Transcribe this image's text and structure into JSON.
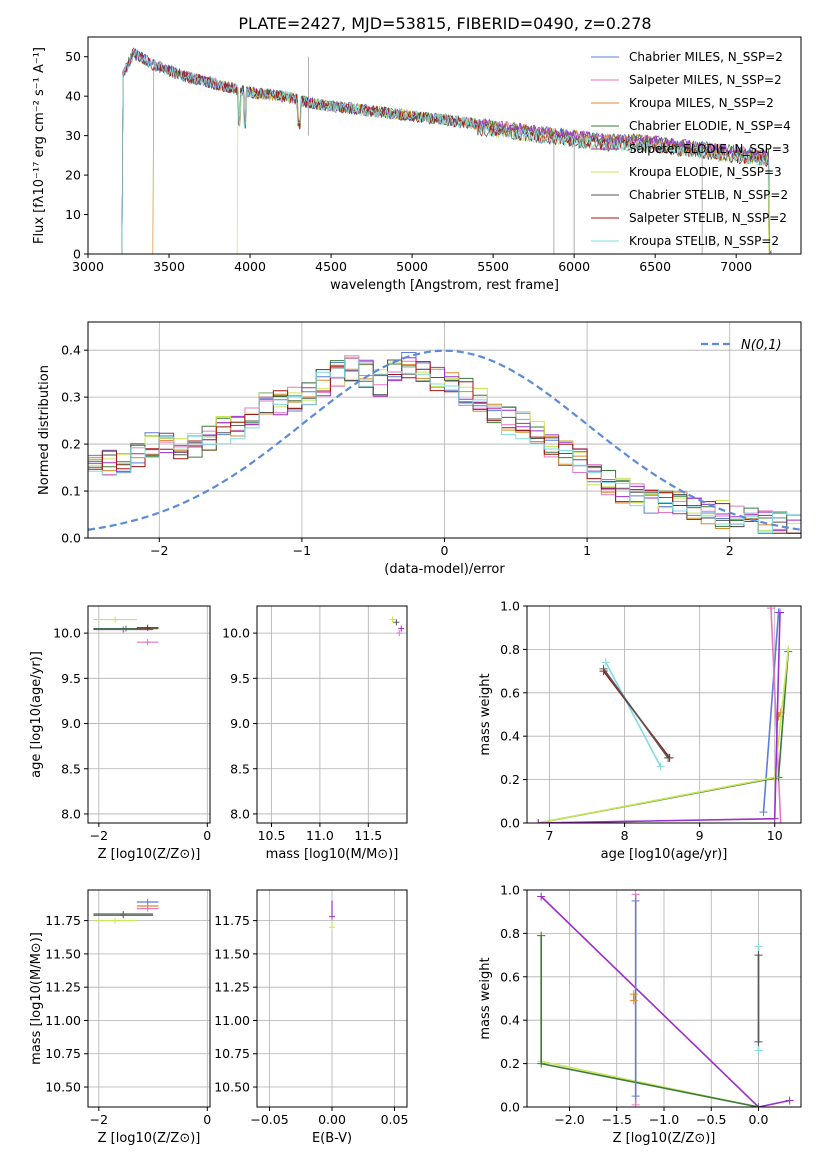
{
  "title": "PLATE=2427, MJD=53815, FIBERID=0490, z=0.278",
  "colors": {
    "chabrier_miles": "#5b7fd6",
    "salpeter_miles": "#e377c2",
    "kroupa_miles": "#d98a2b",
    "chabrier_elodie": "#3d7a3d",
    "salpeter_elodie": "#9b30c9",
    "kroupa_elodie": "#c8e65a",
    "chabrier_stelib": "#555555",
    "salpeter_stelib": "#a01515",
    "kroupa_stelib": "#7fdbe0",
    "normal": "#5b8bd9",
    "grid": "#b0b0b0"
  },
  "chart_data": [
    {
      "id": "spectrum",
      "type": "line",
      "xlabel": "wavelength [Angstrom, rest frame]",
      "ylabel": "Flux [fλ10⁻¹⁷ erg cm⁻² s⁻¹ A⁻¹]",
      "xlim": [
        3000,
        7400
      ],
      "ylim": [
        0,
        55
      ],
      "xticks": [
        3000,
        3500,
        4000,
        4500,
        5000,
        5500,
        6000,
        6500,
        7000
      ],
      "yticks": [
        0,
        10,
        20,
        30,
        40,
        50
      ],
      "grid": false,
      "legend_position": "top-right",
      "continuum": {
        "x": [
          3200,
          3280,
          3400,
          3600,
          3800,
          4000,
          4200,
          4400,
          4600,
          4800,
          5000,
          5200,
          5400,
          5600,
          5800,
          6000,
          6200,
          6400,
          6600,
          6800,
          7000,
          7200
        ],
        "y": [
          44,
          51,
          48,
          45,
          43,
          41,
          40,
          38,
          37,
          36,
          35,
          34,
          33,
          32,
          31,
          30,
          29,
          29,
          28,
          27,
          26,
          25
        ]
      },
      "series": [
        {
          "name": "Chabrier MILES, N_SSP=2",
          "color_key": "chabrier_miles"
        },
        {
          "name": "Salpeter MILES, N_SSP=2",
          "color_key": "salpeter_miles"
        },
        {
          "name": "Kroupa MILES, N_SSP=2",
          "color_key": "kroupa_miles"
        },
        {
          "name": "Chabrier ELODIE, N_SSP=4",
          "color_key": "chabrier_elodie"
        },
        {
          "name": "Salpeter ELODIE, N_SSP=3",
          "color_key": "salpeter_elodie"
        },
        {
          "name": "Kroupa ELODIE, N_SSP=3",
          "color_key": "kroupa_elodie"
        },
        {
          "name": "Chabrier STELIB, N_SSP=2",
          "color_key": "chabrier_stelib"
        },
        {
          "name": "Salpeter STELIB, N_SSP=2",
          "color_key": "salpeter_stelib"
        },
        {
          "name": "Kroupa STELIB, N_SSP=2",
          "color_key": "kroupa_stelib"
        }
      ]
    },
    {
      "id": "residuals",
      "type": "line",
      "xlabel": "(data-model)/error",
      "ylabel": "Normed distribution",
      "xlim": [
        -2.5,
        2.5
      ],
      "ylim": [
        0,
        0.46
      ],
      "xticks": [
        -2,
        -1,
        0,
        1,
        2
      ],
      "yticks": [
        0.0,
        0.1,
        0.2,
        0.3,
        0.4
      ],
      "grid": true,
      "legend_position": "top-right",
      "normal_curve": {
        "name": "N(0,1)",
        "mu": 0,
        "sigma": 1
      },
      "histogram_bins": {
        "start": -2.5,
        "width": 0.1
      },
      "histogram_shape": [
        0.15,
        0.16,
        0.16,
        0.18,
        0.2,
        0.21,
        0.19,
        0.2,
        0.21,
        0.23,
        0.24,
        0.26,
        0.28,
        0.29,
        0.3,
        0.31,
        0.33,
        0.35,
        0.36,
        0.35,
        0.33,
        0.36,
        0.37,
        0.35,
        0.34,
        0.33,
        0.31,
        0.29,
        0.26,
        0.25,
        0.24,
        0.22,
        0.2,
        0.18,
        0.16,
        0.14,
        0.12,
        0.1,
        0.09,
        0.08,
        0.07,
        0.07,
        0.06,
        0.05,
        0.05,
        0.04,
        0.04,
        0.03,
        0.03,
        0.03
      ]
    },
    {
      "id": "age_vs_Z",
      "type": "scatter",
      "xlabel": "Z [log10(Z/Z⊙)]",
      "ylabel": "age [log10(age/yr)]",
      "xlim": [
        -2.2,
        0.05
      ],
      "ylim": [
        7.9,
        10.3
      ],
      "xticks": [
        -2,
        0
      ],
      "yticks": [
        8.0,
        8.5,
        9.0,
        9.5,
        10.0
      ],
      "points": [
        {
          "color_key": "kroupa_elodie",
          "x": -2.1,
          "x2": -1.3,
          "y": 10.15
        },
        {
          "color_key": "chabrier_elodie",
          "x": -2.1,
          "x2": -0.9,
          "y": 10.05
        },
        {
          "color_key": "salpeter_miles",
          "x": -1.3,
          "x2": -0.9,
          "y": 9.9
        },
        {
          "color_key": "salpeter_elodie",
          "x": -2.1,
          "x2": -1.0,
          "y": 10.04
        },
        {
          "color_key": "salpeter_stelib",
          "x": -1.3,
          "x2": -0.9,
          "y": 10.06
        }
      ]
    },
    {
      "id": "age_vs_mass",
      "type": "scatter",
      "xlabel": "mass [log10(M/M⊙)]",
      "ylabel": "",
      "xlim": [
        10.35,
        11.9
      ],
      "ylim": [
        7.9,
        10.3
      ],
      "xticks": [
        10.5,
        11.0,
        11.5
      ],
      "yticks": [
        8.0,
        8.5,
        9.0,
        9.5,
        10.0
      ],
      "points": [
        {
          "color_key": "kroupa_elodie",
          "x": 11.75,
          "y": 10.15
        },
        {
          "color_key": "chabrier_stelib",
          "x": 11.79,
          "y": 10.12
        },
        {
          "color_key": "salpeter_miles",
          "x": 11.82,
          "y": 10.0
        },
        {
          "color_key": "salpeter_elodie",
          "x": 11.84,
          "y": 10.05
        }
      ]
    },
    {
      "id": "massweight_vs_age",
      "type": "line",
      "xlabel": "age [log10(age/yr)]",
      "ylabel": "mass weight",
      "xlim": [
        6.7,
        10.35
      ],
      "ylim": [
        0,
        1.0
      ],
      "xticks": [
        7,
        8,
        9,
        10
      ],
      "yticks": [
        0.0,
        0.2,
        0.4,
        0.6,
        0.8,
        1.0
      ],
      "grid": true,
      "series": [
        {
          "color_key": "kroupa_stelib",
          "x": [
            7.75,
            8.48
          ],
          "y": [
            0.74,
            0.26
          ]
        },
        {
          "color_key": "salpeter_stelib",
          "x": [
            7.72,
            8.6
          ],
          "y": [
            0.7,
            0.3
          ]
        },
        {
          "color_key": "chabrier_stelib",
          "x": [
            7.72,
            8.58
          ],
          "y": [
            0.71,
            0.3
          ]
        },
        {
          "color_key": "chabrier_miles",
          "x": [
            9.85,
            10.05
          ],
          "y": [
            0.05,
            0.97
          ]
        },
        {
          "color_key": "salpeter_miles",
          "x": [
            9.95,
            10.08
          ],
          "y": [
            0.99,
            0.0
          ]
        },
        {
          "color_key": "kroupa_miles",
          "x": [
            10.05,
            10.08
          ],
          "y": [
            0.49,
            0.51
          ]
        },
        {
          "color_key": "chabrier_elodie",
          "x": [
            6.85,
            10.05,
            10.18
          ],
          "y": [
            0.0,
            0.21,
            0.79
          ]
        },
        {
          "color_key": "kroupa_elodie",
          "x": [
            6.85,
            10.0,
            10.18
          ],
          "y": [
            0.0,
            0.21,
            0.8
          ]
        },
        {
          "color_key": "salpeter_elodie",
          "x": [
            6.85,
            10.0,
            10.07
          ],
          "y": [
            0.0,
            0.02,
            0.97
          ]
        }
      ]
    },
    {
      "id": "mass_vs_Z",
      "type": "scatter",
      "xlabel": "Z [log10(Z/Z⊙)]",
      "ylabel": "mass [log10(M/M⊙)]",
      "xlim": [
        -2.2,
        0.05
      ],
      "ylim": [
        10.35,
        11.98
      ],
      "xticks": [
        -2,
        0
      ],
      "yticks": [
        10.5,
        10.75,
        11.0,
        11.25,
        11.5,
        11.75
      ],
      "points": [
        {
          "color_key": "chabrier_miles",
          "x": -1.3,
          "x2": -0.9,
          "y": 11.89
        },
        {
          "color_key": "salpeter_miles",
          "x": -1.3,
          "x2": -0.9,
          "y": 11.84
        },
        {
          "color_key": "kroupa_miles",
          "x": -1.3,
          "x2": -0.9,
          "y": 11.86
        },
        {
          "color_key": "salpeter_elodie",
          "x": -2.1,
          "x2": -1.0,
          "y": 11.79
        },
        {
          "color_key": "kroupa_elodie",
          "x": -2.1,
          "x2": -1.3,
          "y": 11.75
        },
        {
          "color_key": "chabrier_elodie",
          "x": -2.1,
          "x2": -1.0,
          "y": 11.8
        }
      ]
    },
    {
      "id": "mass_vs_ebv",
      "type": "scatter",
      "xlabel": "E(B-V)",
      "ylabel": "",
      "xlim": [
        -0.06,
        0.06
      ],
      "ylim": [
        10.35,
        11.98
      ],
      "xticks": [
        -0.05,
        0.0,
        0.05
      ],
      "yticks": [
        10.5,
        10.75,
        11.0,
        11.25,
        11.5,
        11.75
      ],
      "points": [
        {
          "color_key": "kroupa_elodie",
          "x": 0.0,
          "y": 11.7,
          "y2": 11.75
        },
        {
          "color_key": "salpeter_elodie",
          "x": 0.0,
          "y": 11.78,
          "y2": 11.9
        }
      ]
    },
    {
      "id": "massweight_vs_Z",
      "type": "line",
      "xlabel": "Z [log10(Z/Z⊙)]",
      "ylabel": "mass weight",
      "xlim": [
        -2.45,
        0.45
      ],
      "ylim": [
        0,
        1.0
      ],
      "xticks": [
        -2.0,
        -1.5,
        -1.0,
        -0.5,
        0.0
      ],
      "yticks": [
        0.0,
        0.2,
        0.4,
        0.6,
        0.8,
        1.0
      ],
      "grid": true,
      "series": [
        {
          "color_key": "salpeter_elodie",
          "x": [
            -2.3,
            0.0,
            0.33
          ],
          "y": [
            0.97,
            0.0,
            0.03
          ]
        },
        {
          "color_key": "kroupa_elodie",
          "x": [
            -2.3,
            -2.3,
            0.0
          ],
          "y": [
            0.79,
            0.21,
            0.0
          ]
        },
        {
          "color_key": "chabrier_elodie",
          "x": [
            -2.3,
            -2.3,
            0.0
          ],
          "y": [
            0.79,
            0.2,
            0.0
          ]
        },
        {
          "color_key": "salpeter_miles",
          "x": [
            -1.3,
            -1.3
          ],
          "y": [
            0.98,
            0.01
          ]
        },
        {
          "color_key": "chabrier_miles",
          "x": [
            -1.3,
            -1.3
          ],
          "y": [
            0.95,
            0.05
          ]
        },
        {
          "color_key": "kroupa_miles",
          "x": [
            -1.32,
            -1.32
          ],
          "y": [
            0.49,
            0.52
          ]
        },
        {
          "color_key": "kroupa_stelib",
          "x": [
            0.0,
            0.0
          ],
          "y": [
            0.74,
            0.26
          ]
        },
        {
          "color_key": "chabrier_stelib",
          "x": [
            0.0,
            0.0
          ],
          "y": [
            0.7,
            0.3
          ]
        }
      ]
    }
  ]
}
